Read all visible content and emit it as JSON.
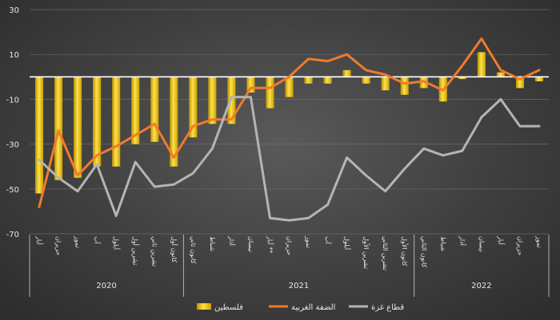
{
  "chart_data": {
    "type": "bar",
    "ylim": [
      -70,
      30
    ],
    "yticks": [
      30,
      10,
      -10,
      -30,
      -50,
      -70
    ],
    "categories": [
      "أيار",
      "حزيران",
      "تموز",
      "آب",
      "أيلول",
      "تشرين أول",
      "تشرين ثاني",
      "كانون أول",
      "كانون ثاني",
      "شباط",
      "آذار",
      "نيسان",
      "أيار **",
      "حزيران",
      "تموز",
      "آب",
      "أيلول",
      "تشرين الأول",
      "تشرين الثاني",
      "كانون الأول",
      "كانون الثاني",
      "شباط",
      "آذار",
      "نيسان",
      "أيار",
      "حزيران",
      "تموز"
    ],
    "year_groups": [
      {
        "label": "2020",
        "start": 0,
        "end": 7
      },
      {
        "label": "2021",
        "start": 8,
        "end": 19
      },
      {
        "label": "2022",
        "start": 20,
        "end": 26
      }
    ],
    "series": [
      {
        "name": "فلسطين",
        "kind": "bar",
        "color": "#f2c500",
        "values": [
          -52,
          -46,
          -45,
          -40,
          -40,
          -30,
          -29,
          -40,
          -27,
          -21,
          -21,
          -7,
          -14,
          -9,
          -3,
          -3,
          3,
          -3,
          -6,
          -8,
          -5,
          -11,
          -1,
          11,
          2,
          -5,
          -2
        ]
      },
      {
        "name": "الضفة الغربية",
        "kind": "line",
        "color": "#f07b2a",
        "values": [
          -58,
          -24,
          -44,
          -35,
          -31,
          -26,
          -21,
          -36,
          -22,
          -19,
          -19,
          -5,
          -5,
          0,
          8,
          7,
          10,
          3,
          1,
          -3,
          -2,
          -6,
          5,
          17,
          3,
          -1,
          3
        ]
      },
      {
        "name": "قطاع غزة",
        "kind": "line",
        "color": "#b4b4b4",
        "values": [
          -37,
          -45,
          -51,
          -39,
          -62,
          -38,
          -49,
          -48,
          -43,
          -32,
          -9,
          -9,
          -63,
          -64,
          -63,
          -57,
          -36,
          -44,
          -51,
          -41,
          -32,
          -35,
          -33,
          -18,
          -10,
          -22,
          -22
        ]
      }
    ]
  }
}
